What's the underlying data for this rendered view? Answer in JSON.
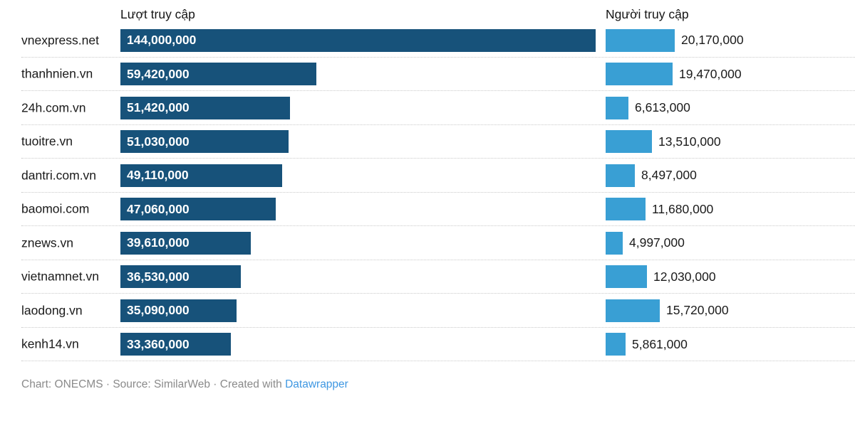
{
  "headers": {
    "visits": "Lượt truy cập",
    "visitors": "Người truy cập"
  },
  "footer": {
    "prefix": "Chart: ONECMS · Source: SimilarWeb · Created with ",
    "link_label": "Datawrapper"
  },
  "colors": {
    "bar_dark": "#17527a",
    "bar_light": "#399fd4",
    "link_blue": "#3e97e2",
    "footer_gray": "#8a8a8a",
    "separator": "#c9c9c9",
    "text_dark": "#1a1a1a"
  },
  "chart_data": {
    "type": "bar",
    "orientation": "horizontal",
    "categories": [
      "vnexpress.net",
      "thanhnien.vn",
      "24h.com.vn",
      "tuoitre.vn",
      "dantri.com.vn",
      "baomoi.com",
      "znews.vn",
      "vietnamnet.vn",
      "laodong.vn",
      "kenh14.vn"
    ],
    "series": [
      {
        "name": "Lượt truy cập",
        "values": [
          144000000,
          59420000,
          51420000,
          51030000,
          49110000,
          47060000,
          39610000,
          36530000,
          35090000,
          33360000
        ],
        "color": "#17527a",
        "label_position": "inside-bar",
        "axis_min": 0,
        "axis_max": 144000000
      },
      {
        "name": "Người truy cập",
        "values": [
          20170000,
          19470000,
          6613000,
          13510000,
          8497000,
          11680000,
          4997000,
          12030000,
          15720000,
          5861000
        ],
        "color": "#399fd4",
        "label_position": "outside-bar",
        "axis_min": 0,
        "axis_max": 20170000
      }
    ],
    "value_format": "comma-grouped integer",
    "grid": "dotted row separators",
    "legend_position": "column headers above bars",
    "attribution": "Chart: ONECMS · Source: SimilarWeb · Created with Datawrapper"
  }
}
